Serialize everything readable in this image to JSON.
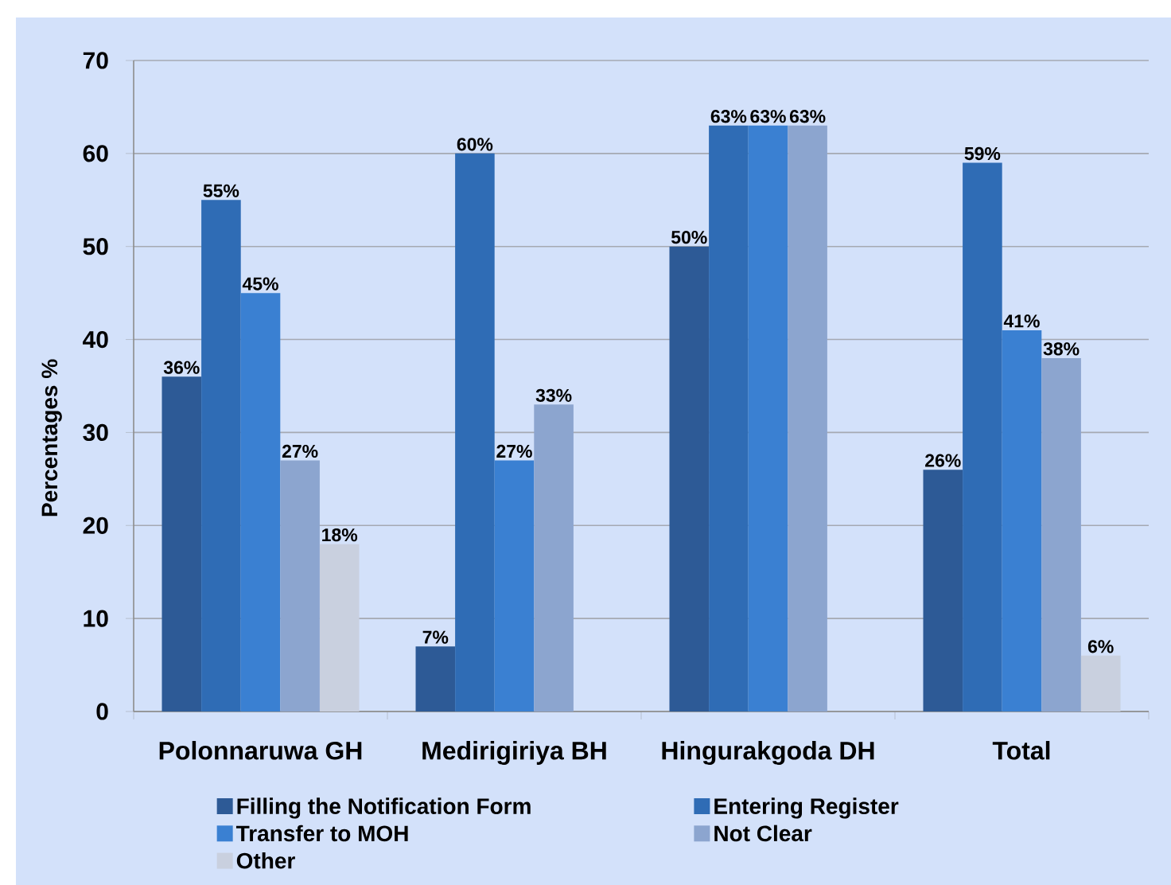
{
  "chart_data": {
    "type": "bar",
    "ylabel": "Percentages %",
    "categories": [
      "Polonnaruwa GH",
      "Medirigiriya BH",
      "Hingurakgoda DH",
      "Total"
    ],
    "series": [
      {
        "name": "Filling the Notification Form",
        "color": "#2d5a96",
        "values": [
          36,
          7,
          50,
          26
        ],
        "value_labels": [
          "36%",
          "7%",
          "50%",
          "26%"
        ]
      },
      {
        "name": "Entering Register",
        "color": "#2f6cb5",
        "values": [
          55,
          60,
          63,
          59
        ],
        "value_labels": [
          "55%",
          "60%",
          "63%",
          "59%"
        ]
      },
      {
        "name": "Transfer to MOH",
        "color": "#3a80d2",
        "values": [
          45,
          27,
          63,
          41
        ],
        "value_labels": [
          "45%",
          "27%",
          "63%",
          "41%"
        ]
      },
      {
        "name": "Not Clear",
        "color": "#8ca5cf",
        "values": [
          27,
          33,
          63,
          38
        ],
        "value_labels": [
          "27%",
          "33%",
          "63%",
          "38%"
        ]
      },
      {
        "name": "Other",
        "color": "#c9d0df",
        "values": [
          18,
          null,
          null,
          6
        ],
        "value_labels": [
          "18%",
          null,
          null,
          "6%"
        ]
      }
    ],
    "ylim": [
      0,
      70
    ],
    "yticks": [
      0,
      10,
      20,
      30,
      40,
      50,
      60,
      70
    ],
    "grid": "y",
    "legend": "bottom"
  }
}
